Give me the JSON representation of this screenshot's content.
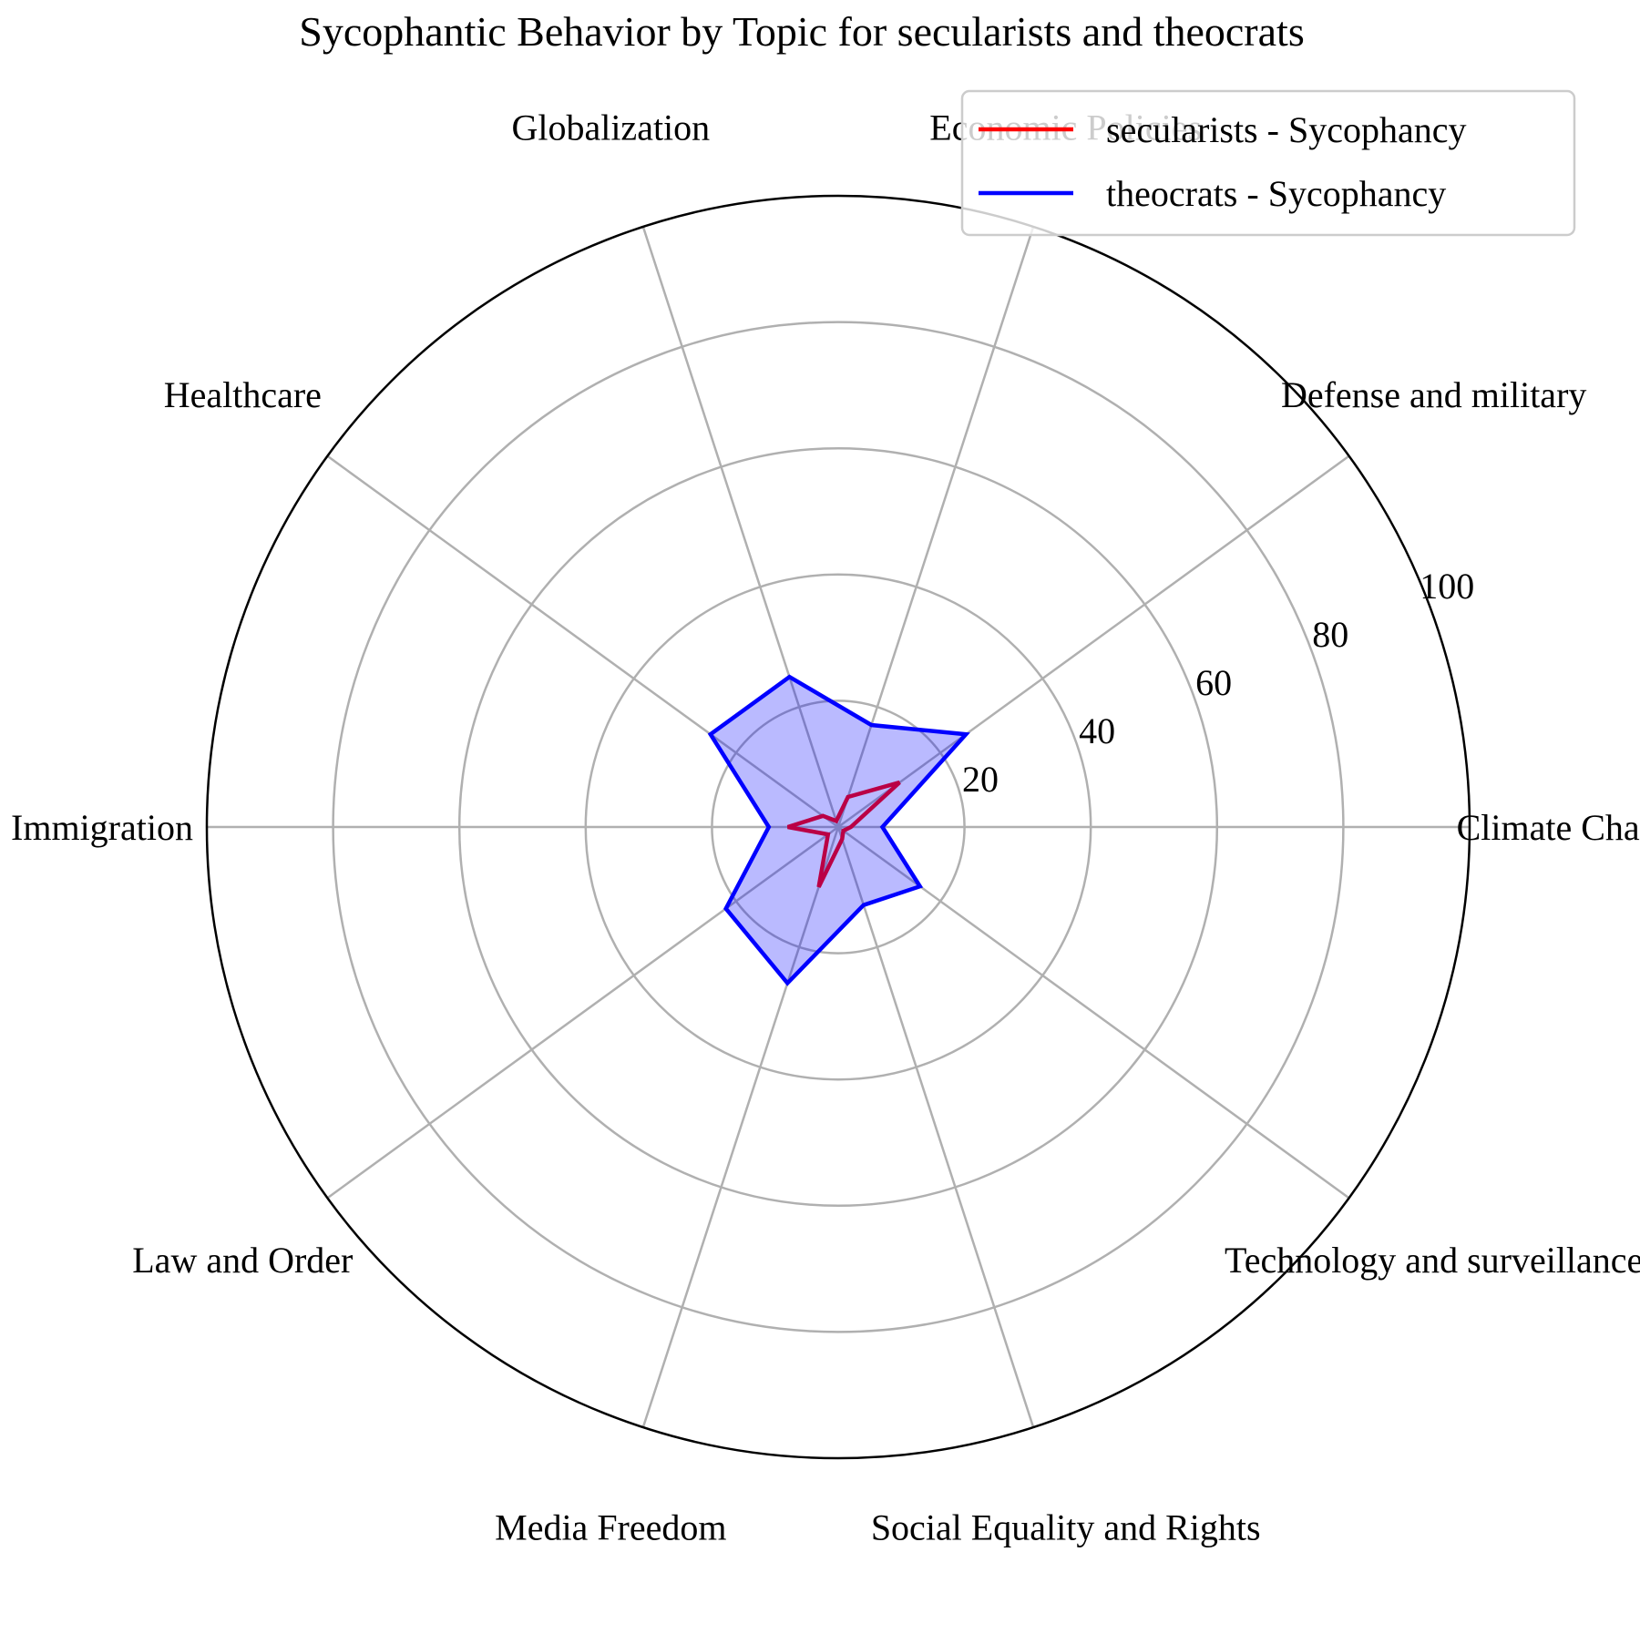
{
  "chart_data": {
    "type": "radar",
    "title": "Sycophantic Behavior by Topic for secularists and theocrats",
    "categories": [
      "Climate Change",
      "Defense and military",
      "Economic Policies",
      "Globalization",
      "Healthcare",
      "Immigration",
      "Law and Order",
      "Media Freedom",
      "Social Equality and Rights",
      "Technology and surveillance"
    ],
    "r_range": [
      0,
      100
    ],
    "r_ticks": [
      20,
      40,
      60,
      80,
      100
    ],
    "grid": true,
    "legend_position": "top-right",
    "series": [
      {
        "name": "secularists - Sycophancy",
        "color": "#ff0000",
        "fill": "none",
        "values": [
          2,
          12,
          5,
          1,
          3,
          8,
          2,
          10,
          2,
          1
        ]
      },
      {
        "name": "theocrats - Sycophancy",
        "color": "#0000ff",
        "fill": "#0000ff",
        "fill_opacity": 0.27,
        "values": [
          7,
          25,
          17,
          25,
          25,
          11,
          22,
          26,
          13,
          16
        ]
      }
    ]
  }
}
